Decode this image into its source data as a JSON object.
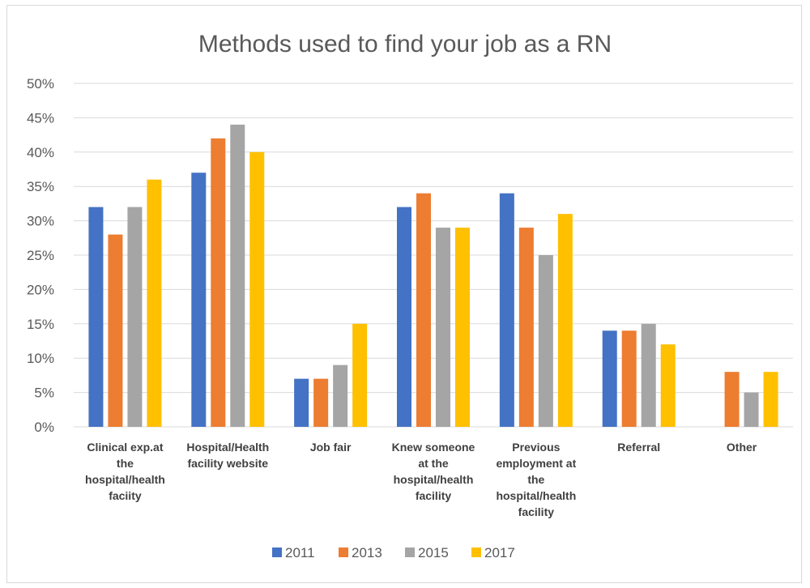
{
  "chart_data": {
    "type": "bar",
    "title": "Methods used to find your job as a RN",
    "xlabel": "",
    "ylabel": "",
    "ylim": [
      0,
      50
    ],
    "y_ticks": [
      "0%",
      "5%",
      "10%",
      "15%",
      "20%",
      "25%",
      "30%",
      "35%",
      "40%",
      "45%",
      "50%"
    ],
    "grid": true,
    "legend_position": "bottom",
    "categories": [
      [
        "Clinical exp.at",
        "the",
        "hospital/health",
        "faciity"
      ],
      [
        "Hospital/Health",
        "facility website"
      ],
      [
        "Job fair"
      ],
      [
        "Knew someone",
        "at the",
        "hospital/health",
        "facility"
      ],
      [
        "Previous",
        "employment at",
        "the",
        "hospital/health",
        "facility"
      ],
      [
        "Referral"
      ],
      [
        "Other"
      ]
    ],
    "series": [
      {
        "name": "2011",
        "color": "#4472c4",
        "values": [
          32,
          37,
          7,
          32,
          34,
          14,
          null
        ]
      },
      {
        "name": "2013",
        "color": "#ed7d31",
        "values": [
          28,
          42,
          7,
          34,
          29,
          14,
          8
        ]
      },
      {
        "name": "2015",
        "color": "#a5a5a5",
        "values": [
          32,
          44,
          9,
          29,
          25,
          15,
          5
        ]
      },
      {
        "name": "2017",
        "color": "#ffc000",
        "values": [
          36,
          40,
          15,
          29,
          31,
          12,
          8
        ]
      }
    ]
  }
}
